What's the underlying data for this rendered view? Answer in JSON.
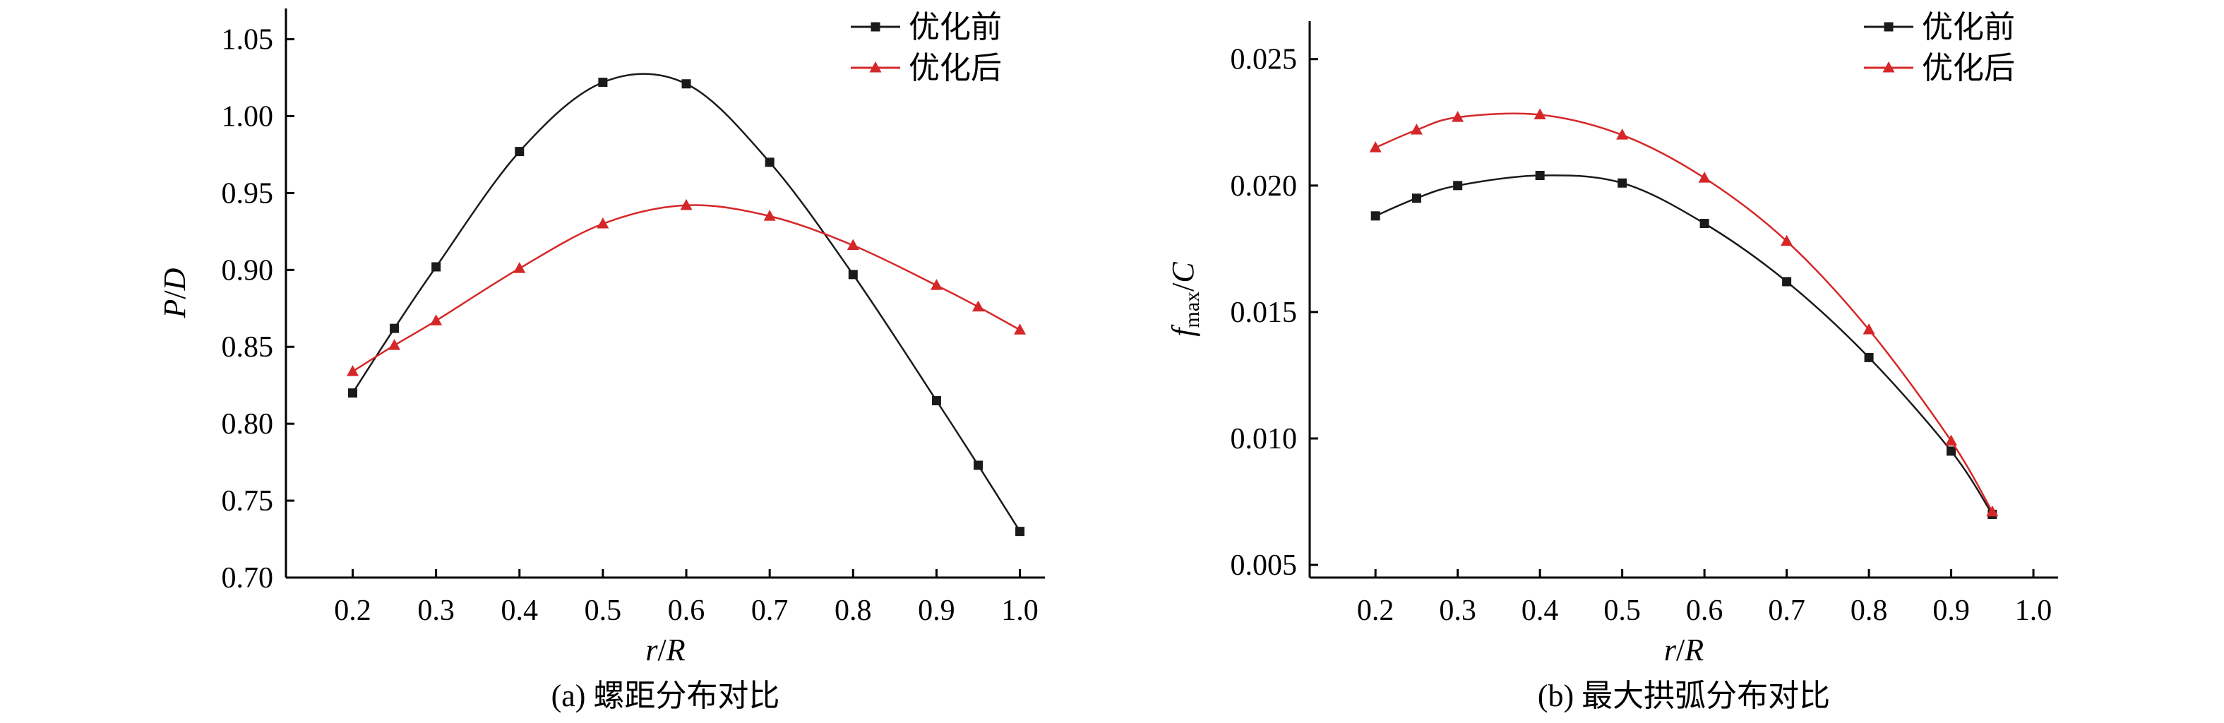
{
  "colors": {
    "before": "#1a1a1a",
    "after": "#d62728"
  },
  "chart_data": [
    {
      "type": "line",
      "caption": "(a) 螺距分布对比",
      "xlabel_parts": [
        "r",
        "/",
        "R"
      ],
      "ylabel_parts": [
        "P",
        "/",
        "D"
      ],
      "xlim": [
        0.12,
        1.03
      ],
      "ylim": [
        0.7,
        1.07
      ],
      "xticks": [
        0.2,
        0.3,
        0.4,
        0.5,
        0.6,
        0.7,
        0.8,
        0.9,
        1.0
      ],
      "xtick_labels": [
        "0.2",
        "0.3",
        "0.4",
        "0.5",
        "0.6",
        "0.7",
        "0.8",
        "0.9",
        "1.0"
      ],
      "yticks": [
        0.7,
        0.75,
        0.8,
        0.85,
        0.9,
        0.95,
        1.0,
        1.05
      ],
      "ytick_labels": [
        "0.70",
        "0.75",
        "0.80",
        "0.85",
        "0.90",
        "0.95",
        "1.00",
        "1.05"
      ],
      "legend_position": "top-right",
      "series": [
        {
          "name": "优化前",
          "marker": "square",
          "color_key": "before",
          "x": [
            0.2,
            0.25,
            0.3,
            0.4,
            0.5,
            0.6,
            0.7,
            0.8,
            0.9,
            0.95,
            1.0
          ],
          "values": [
            0.82,
            0.862,
            0.902,
            0.977,
            1.022,
            1.021,
            0.97,
            0.897,
            0.815,
            0.773,
            0.73
          ]
        },
        {
          "name": "优化后",
          "marker": "triangle",
          "color_key": "after",
          "x": [
            0.2,
            0.25,
            0.3,
            0.4,
            0.5,
            0.6,
            0.7,
            0.8,
            0.9,
            0.95,
            1.0
          ],
          "values": [
            0.834,
            0.851,
            0.867,
            0.901,
            0.93,
            0.942,
            0.935,
            0.916,
            0.89,
            0.876,
            0.861
          ]
        }
      ]
    },
    {
      "type": "line",
      "caption": "(b) 最大拱弧分布对比",
      "xlabel_parts": [
        "r",
        "/",
        "R"
      ],
      "ylabel_parts": [
        "f",
        "max",
        "/",
        "C"
      ],
      "xlim": [
        0.12,
        1.03
      ],
      "ylim": [
        0.0045,
        0.0265
      ],
      "xticks": [
        0.2,
        0.3,
        0.4,
        0.5,
        0.6,
        0.7,
        0.8,
        0.9,
        1.0
      ],
      "xtick_labels": [
        "0.2",
        "0.3",
        "0.4",
        "0.5",
        "0.6",
        "0.7",
        "0.8",
        "0.9",
        "1.0"
      ],
      "yticks": [
        0.005,
        0.01,
        0.015,
        0.02,
        0.025
      ],
      "ytick_labels": [
        "0.005",
        "0.010",
        "0.015",
        "0.020",
        "0.025"
      ],
      "legend_position": "top-right",
      "series": [
        {
          "name": "优化前",
          "marker": "square",
          "color_key": "before",
          "x": [
            0.2,
            0.25,
            0.3,
            0.4,
            0.5,
            0.6,
            0.7,
            0.8,
            0.9,
            0.95
          ],
          "values": [
            0.0188,
            0.0195,
            0.02,
            0.0204,
            0.0201,
            0.0185,
            0.0162,
            0.0132,
            0.0095,
            0.007
          ]
        },
        {
          "name": "优化后",
          "marker": "triangle",
          "color_key": "after",
          "x": [
            0.2,
            0.25,
            0.3,
            0.4,
            0.5,
            0.6,
            0.7,
            0.8,
            0.9,
            0.95
          ],
          "values": [
            0.0215,
            0.0222,
            0.0227,
            0.0228,
            0.022,
            0.0203,
            0.0178,
            0.0143,
            0.0099,
            0.0071
          ]
        }
      ]
    }
  ]
}
